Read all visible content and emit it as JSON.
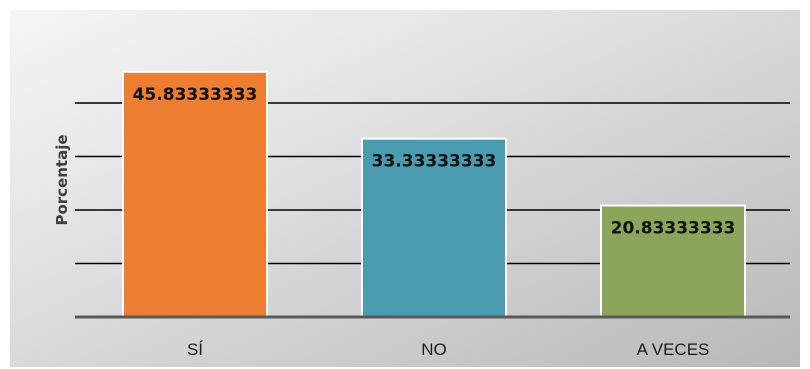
{
  "chart_data": {
    "type": "bar",
    "categories": [
      "SÍ",
      "NO",
      "A VECES"
    ],
    "values": [
      45.83333333,
      33.33333333,
      20.83333333
    ],
    "value_labels": [
      "45.83333333",
      "33.33333333",
      "20.83333333"
    ],
    "colors": [
      "#ED7D31",
      "#4A9AB0",
      "#8BA55A"
    ],
    "title": "",
    "xlabel": "",
    "ylabel": "Porcentaje",
    "ylim": [
      0,
      50
    ],
    "gridlines": [
      10,
      20,
      30,
      40
    ],
    "grid": true,
    "legend": "none",
    "background": [
      "#f2f2f2",
      "#bdbdbd"
    ]
  }
}
